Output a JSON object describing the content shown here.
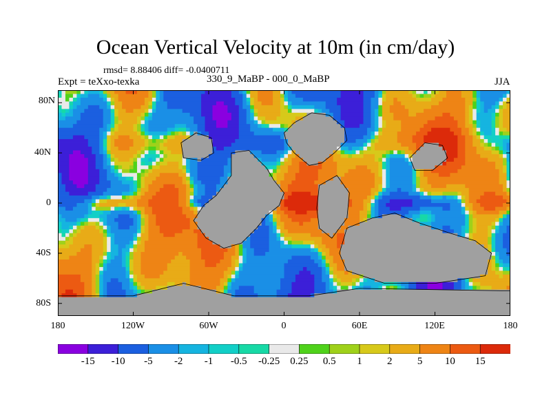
{
  "title": "Ocean Vertical Velocity at 10m (in cm/day)",
  "stats": "rmsd= 8.88406 diff= -0.0400711",
  "expt": "Expt = teXxo-texka",
  "difference_label": "330_9_MaBP - 000_0_MaBP",
  "season": "JJA",
  "map_data": {
    "type": "heatmap",
    "projection": "cylindrical-equidistant",
    "lon_range": [
      -180,
      180
    ],
    "lat_range": [
      -90,
      90
    ],
    "x_ticks": [
      "180",
      "120W",
      "60W",
      "0",
      "60E",
      "120E",
      "180"
    ],
    "x_tick_values": [
      -180,
      -120,
      -60,
      0,
      60,
      120,
      180
    ],
    "y_ticks": [
      "80N",
      "40N",
      "0",
      "40S",
      "80S"
    ],
    "y_tick_values": [
      80,
      40,
      0,
      -40,
      -80
    ],
    "land_color": "#a0a0a0",
    "missing_color": "#ffffff"
  },
  "colorbar": {
    "labels": [
      "-15",
      "-10",
      "-5",
      "-2",
      "-1",
      "-0.5",
      "-0.25",
      "0.25",
      "0.5",
      "1",
      "2",
      "5",
      "10",
      "15"
    ],
    "colors": [
      "#8a00e0",
      "#3c1fd8",
      "#1b5fe0",
      "#1a8fe6",
      "#15b4e0",
      "#12cfc7",
      "#17d9a6",
      "#e9e9e9",
      "#4fd21b",
      "#9fd11a",
      "#d7c91a",
      "#e8ab17",
      "#ee8415",
      "#ec5a12",
      "#dc2a0a"
    ]
  }
}
